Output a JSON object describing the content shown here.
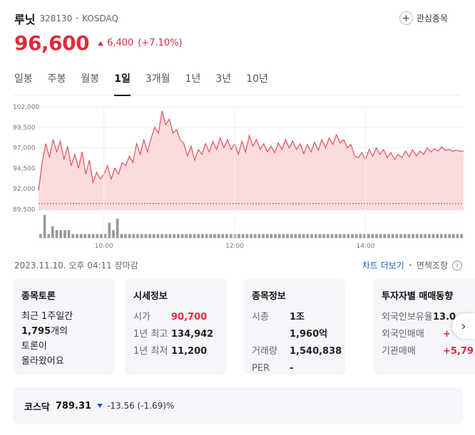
{
  "header": {
    "name": "루닛",
    "code": "328130",
    "dot": "•",
    "market": "KOSDAQ",
    "watch_label": "관심종목",
    "watch_icon": "plus-circle-icon"
  },
  "price": {
    "current": "96,600",
    "change": "6,400",
    "change_pct": "(+7.10%)",
    "up_color": "#e02a3e"
  },
  "tabs": [
    {
      "label": "일봉"
    },
    {
      "label": "주봉"
    },
    {
      "label": "월봉"
    },
    {
      "label": "1일"
    },
    {
      "label": "3개월"
    },
    {
      "label": "1년"
    },
    {
      "label": "3년"
    },
    {
      "label": "10년"
    }
  ],
  "active_tab": "1일",
  "chart_data": {
    "type": "area",
    "x_ticks": [
      "10:00",
      "12:00",
      "14:00"
    ],
    "y_ticks": [
      "102,000",
      "99,500",
      "97,000",
      "94,500",
      "92,000",
      "89,500"
    ],
    "ylim": [
      89500,
      102000
    ],
    "prev_close_dotted": 90200,
    "line_color": "#e0525c",
    "fill_color": "#fbdcdc",
    "series": [
      {
        "values": [
          91800,
          95200,
          97500,
          95800,
          98000,
          96500,
          97800,
          95600,
          97200,
          94800,
          96200,
          94500,
          96500,
          93800,
          95500,
          92800,
          94000,
          93200,
          93800,
          94800,
          93200,
          94500,
          93800,
          95200,
          94800,
          96000,
          95200,
          97500,
          96200,
          98000,
          96500,
          98200,
          99500,
          98800,
          101500,
          99800,
          100500,
          98800,
          99200,
          98000,
          97500,
          96000,
          97200,
          95500,
          96800,
          96200,
          97500,
          96500,
          97800,
          96800,
          98200,
          97000,
          98000,
          96800,
          97500,
          96200,
          97800,
          96500,
          98500,
          97200,
          98000,
          96800,
          97500,
          96500,
          97200,
          96400,
          97600,
          96800,
          98000,
          97000,
          97800,
          96800,
          97500,
          96300,
          97400,
          96500,
          97700,
          96700,
          98000,
          97000,
          98200,
          97400,
          98600,
          97600,
          98000,
          97000,
          97400,
          96000,
          95800,
          96400,
          95600,
          96800,
          96000,
          97000,
          96200,
          96800,
          95800,
          96400,
          95600,
          96200,
          95800,
          96600,
          95900,
          96800,
          96000,
          96600,
          96200,
          97000,
          96500,
          96900,
          96600,
          97100,
          96700,
          96800,
          96600,
          96700,
          96600,
          96600
        ]
      }
    ],
    "volume_values": [
      1,
      6,
      1,
      3,
      2,
      2,
      2,
      2,
      1,
      1,
      1,
      1,
      1,
      1,
      1,
      1,
      1,
      4,
      2,
      5,
      1,
      1,
      1,
      1,
      1,
      1,
      1,
      1,
      1,
      1,
      1,
      1,
      1,
      1,
      1,
      1,
      1,
      1,
      1,
      1,
      1,
      1,
      1,
      1,
      1,
      1,
      1,
      1,
      1,
      1,
      1,
      1,
      1,
      1,
      1,
      1,
      1,
      1,
      1,
      1,
      1,
      1,
      1,
      1,
      1,
      1,
      1,
      1,
      1,
      1,
      1,
      1,
      1,
      1,
      1,
      1,
      1,
      1,
      1,
      1,
      1,
      1,
      1,
      1,
      1,
      1,
      1,
      1,
      1,
      1,
      1,
      1,
      1,
      1,
      1,
      1,
      1,
      1,
      1,
      1,
      1,
      1,
      1,
      1,
      1
    ]
  },
  "status": {
    "timestamp": "2023.11.10. 오후 04:11 장마감",
    "more_label": "차트 더보기",
    "sep": "•",
    "disclaimer": "면책조항",
    "info_icon": "info-icon"
  },
  "cards": {
    "discussion": {
      "title": "종목토론",
      "line1": "최근 1주일간",
      "count": "1,795",
      "line2": "개의",
      "line3": "토론이",
      "line4": "올라왔어요"
    },
    "market_info": {
      "title": "시세정보",
      "rows": [
        {
          "label": "시가",
          "value": "90,700"
        },
        {
          "label": "1년 최고",
          "value": "134,942"
        },
        {
          "label": "1년 최저",
          "value": "11,200"
        }
      ]
    },
    "stock_info": {
      "title": "종목정보",
      "rows": [
        {
          "label": "시총",
          "value": "1조 1,960억"
        },
        {
          "label": "거래량",
          "value": "1,540,838"
        },
        {
          "label": "PER",
          "value": "-"
        }
      ]
    },
    "investor": {
      "title": "투자자별 매매동향",
      "rows": [
        {
          "label": "외국인보유율",
          "value": "13.0"
        },
        {
          "label": "외국인매매",
          "value": "+"
        },
        {
          "label": "기관매매",
          "value": "+5,79"
        }
      ]
    },
    "next_icon": "chevron-right-icon"
  },
  "index": {
    "name": "코스닥",
    "value": "789.31",
    "change": "-13.56 (-1.69)%",
    "down_color": "#1a5fc8"
  }
}
